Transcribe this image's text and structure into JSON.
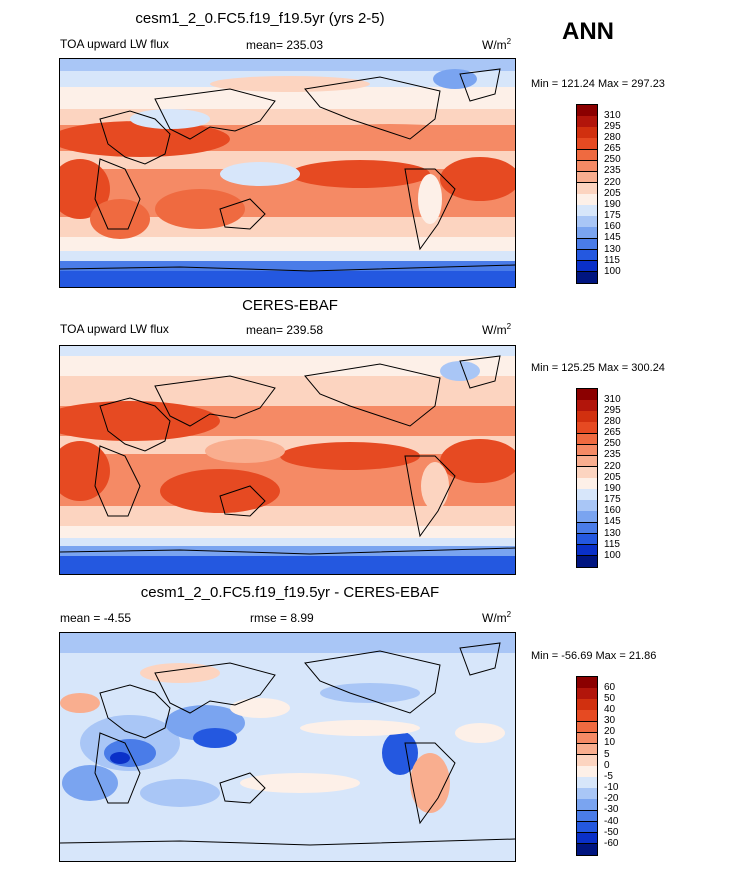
{
  "header": {
    "season": "ANN"
  },
  "panels": [
    {
      "title": "cesm1_2_0.FC5.f19_f19.5yr (yrs 2-5)",
      "left_label": "TOA upward LW flux",
      "center_label": "mean= 235.03",
      "units_base": "W/m",
      "units_sup": "2",
      "minmax": "Min = 121.24 Max = 297.23",
      "colorbar_levels": [
        "310",
        "295",
        "280",
        "265",
        "250",
        "235",
        "220",
        "205",
        "190",
        "175",
        "160",
        "145",
        "130",
        "115",
        "100"
      ],
      "colors": [
        "#8b0000",
        "#b2150b",
        "#d1300f",
        "#e64a22",
        "#ef6a40",
        "#f58a65",
        "#f9ae8f",
        "#fcd4c0",
        "#fdf0e8",
        "#d7e6fa",
        "#a9c6f6",
        "#7aa4f0",
        "#4a7ce8",
        "#2458e0",
        "#0a30c8",
        "#001580"
      ]
    },
    {
      "title": "CERES-EBAF",
      "left_label": "TOA upward LW flux",
      "center_label": "mean= 239.58",
      "units_base": "W/m",
      "units_sup": "2",
      "minmax": "Min = 125.25 Max = 300.24",
      "colorbar_levels": [
        "310",
        "295",
        "280",
        "265",
        "250",
        "235",
        "220",
        "205",
        "190",
        "175",
        "160",
        "145",
        "130",
        "115",
        "100"
      ],
      "colors": [
        "#8b0000",
        "#b2150b",
        "#d1300f",
        "#e64a22",
        "#ef6a40",
        "#f58a65",
        "#f9ae8f",
        "#fcd4c0",
        "#fdf0e8",
        "#d7e6fa",
        "#a9c6f6",
        "#7aa4f0",
        "#4a7ce8",
        "#2458e0",
        "#0a30c8",
        "#001580"
      ]
    },
    {
      "title": "cesm1_2_0.FC5.f19_f19.5yr - CERES-EBAF",
      "left_label": "mean =  -4.55",
      "center_label": "rmse =   8.99",
      "units_base": "W/m",
      "units_sup": "2",
      "minmax": "Min = -56.69 Max =  21.86",
      "colorbar_levels": [
        "60",
        "50",
        "40",
        "30",
        "20",
        "10",
        "5",
        "0",
        "-5",
        "-10",
        "-20",
        "-30",
        "-40",
        "-50",
        "-60"
      ],
      "colors": [
        "#8b0000",
        "#b2150b",
        "#d1300f",
        "#e64a22",
        "#ef6a40",
        "#f58a65",
        "#f9ae8f",
        "#fcd4c0",
        "#fdf0e8",
        "#d7e6fa",
        "#a9c6f6",
        "#7aa4f0",
        "#4a7ce8",
        "#2458e0",
        "#0a30c8",
        "#001580"
      ]
    }
  ]
}
